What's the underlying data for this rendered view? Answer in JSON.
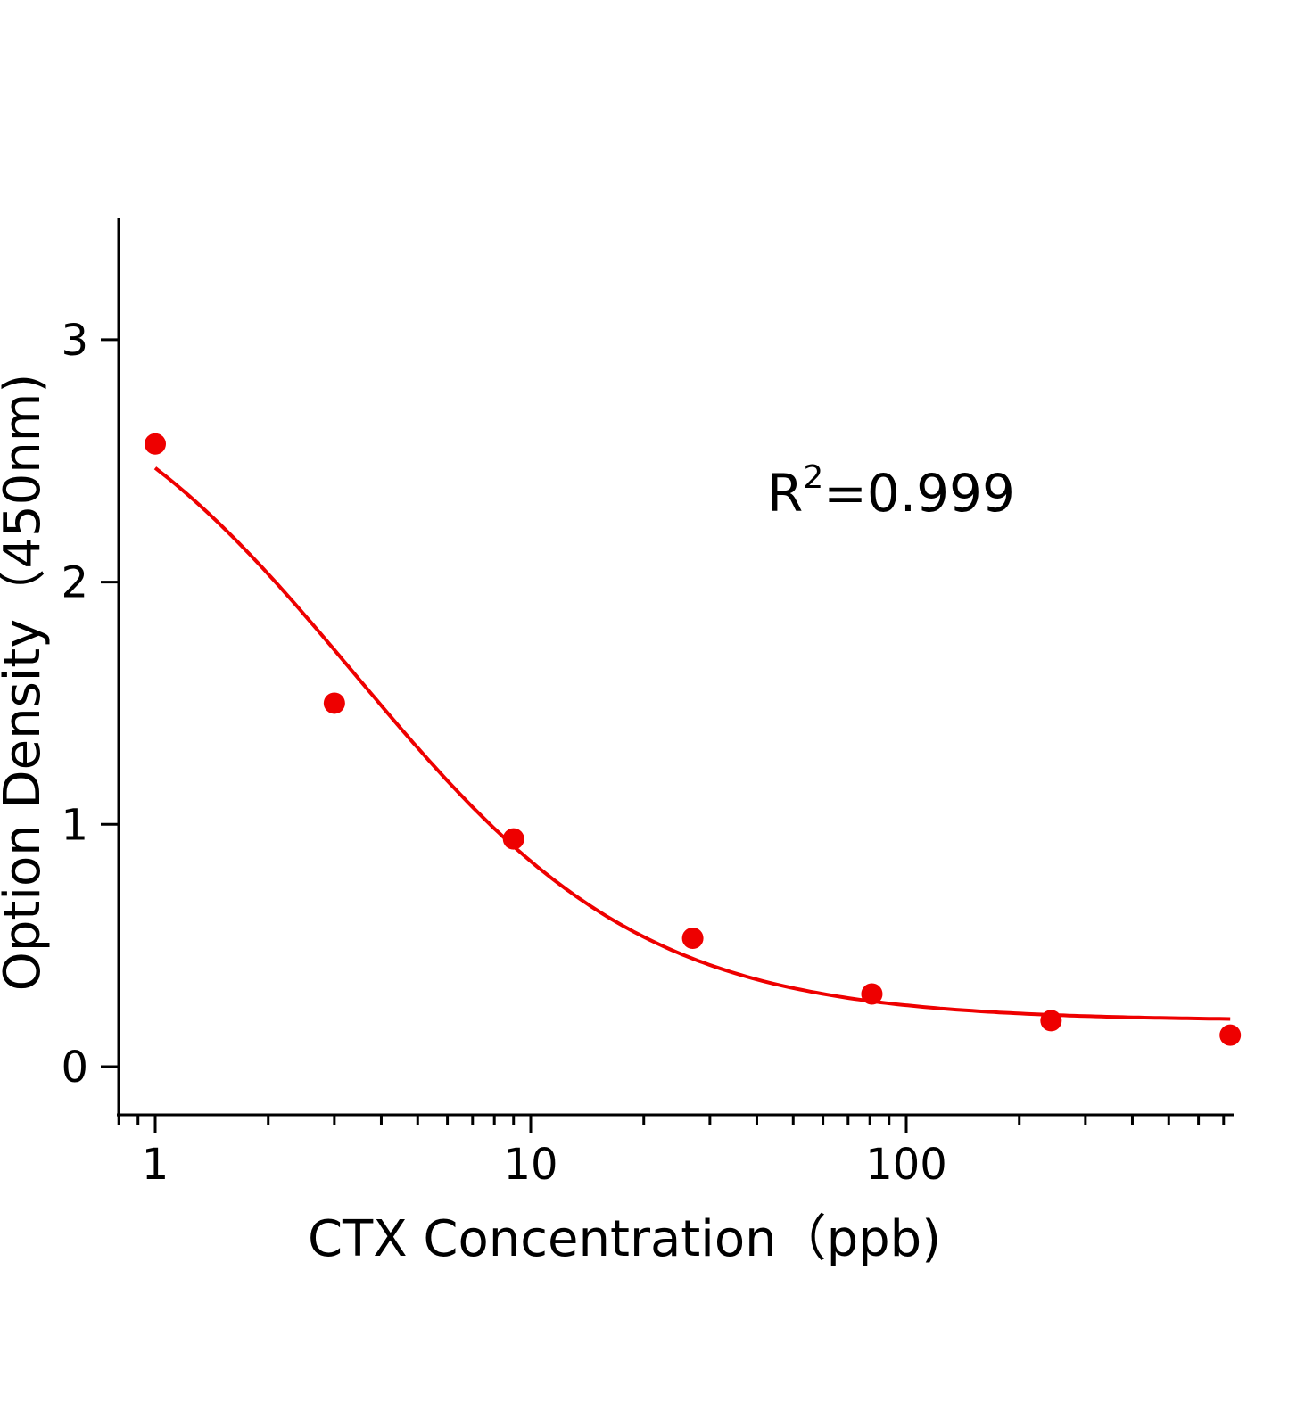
{
  "chart_data": {
    "type": "scatter",
    "title": "",
    "xlabel": "CTX Concentration（ppb)",
    "ylabel": "Option Density（450nm)",
    "x_scale": "log",
    "xlim": [
      0.8,
      750
    ],
    "ylim": [
      -0.2,
      3.5
    ],
    "x_ticks": [
      1,
      10,
      100
    ],
    "x_tick_labels": [
      "1",
      "10",
      "100"
    ],
    "x_minor_ticks": [
      0.8,
      0.9,
      2,
      3,
      4,
      5,
      6,
      7,
      8,
      9,
      20,
      30,
      40,
      50,
      60,
      70,
      80,
      90,
      200,
      300,
      400,
      500,
      600,
      700
    ],
    "y_ticks": [
      0,
      1,
      2,
      3
    ],
    "y_tick_labels": [
      "0",
      "1",
      "2",
      "3"
    ],
    "grid": false,
    "legend": "none",
    "color": "#ee0000",
    "series": [
      {
        "type": "scatter",
        "x": [
          1,
          3,
          9,
          27,
          81,
          243,
          729
        ],
        "y": [
          2.57,
          1.5,
          0.94,
          0.53,
          0.3,
          0.19,
          0.13
        ]
      },
      {
        "type": "line",
        "fit": "four-parameter logistic",
        "x": [
          1,
          2,
          3,
          5,
          9,
          15,
          27,
          50,
          81,
          150,
          243,
          500,
          729
        ],
        "y": [
          2.45,
          1.98,
          1.67,
          1.29,
          0.88,
          0.62,
          0.44,
          0.32,
          0.27,
          0.23,
          0.21,
          0.2,
          0.2
        ]
      }
    ],
    "annotations": [
      {
        "text_base": "R",
        "text_sup": "2",
        "text_rest": "=0.999"
      }
    ]
  }
}
